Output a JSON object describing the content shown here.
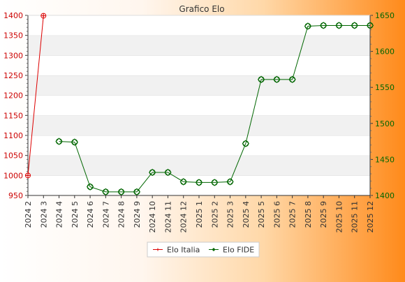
{
  "chart_data": {
    "type": "line",
    "title": "Grafico Elo",
    "categories": [
      "2024 2",
      "2024 3",
      "2024 4",
      "2024 5",
      "2024 6",
      "2024 7",
      "2024 8",
      "2024 9",
      "2024 10",
      "2024 11",
      "2024 12",
      "2025 1",
      "2025 2",
      "2025 3",
      "2025 4",
      "2025 5",
      "2025 6",
      "2025 7",
      "2025 8",
      "2025 9",
      "2025 10",
      "2025 11",
      "2025 12"
    ],
    "y_left": {
      "min": 950,
      "max": 1400,
      "ticks": [
        950,
        1000,
        1050,
        1100,
        1150,
        1200,
        1250,
        1300,
        1350,
        1400
      ]
    },
    "y_right": {
      "min": 1400,
      "max": 1650,
      "ticks": [
        1400,
        1450,
        1500,
        1550,
        1600,
        1650
      ]
    },
    "grid": "horizontal bands",
    "legend_position": "bottom-center",
    "series": [
      {
        "name": "Elo Italia",
        "axis": "left",
        "color": "#dd0000",
        "marker": "plus",
        "values": [
          1000,
          1399,
          null,
          null,
          null,
          null,
          null,
          null,
          null,
          null,
          null,
          null,
          null,
          null,
          null,
          null,
          null,
          null,
          null,
          null,
          null,
          null,
          null
        ]
      },
      {
        "name": "Elo FIDE",
        "axis": "right",
        "color": "#006600",
        "marker": "diamond",
        "values": [
          null,
          null,
          1475,
          1474,
          1412,
          1405,
          1405,
          1405,
          1432,
          1432,
          1419,
          1418,
          1418,
          1419,
          1472,
          1561,
          1561,
          1561,
          1635,
          1636,
          1636,
          1636,
          1636
        ]
      }
    ]
  }
}
